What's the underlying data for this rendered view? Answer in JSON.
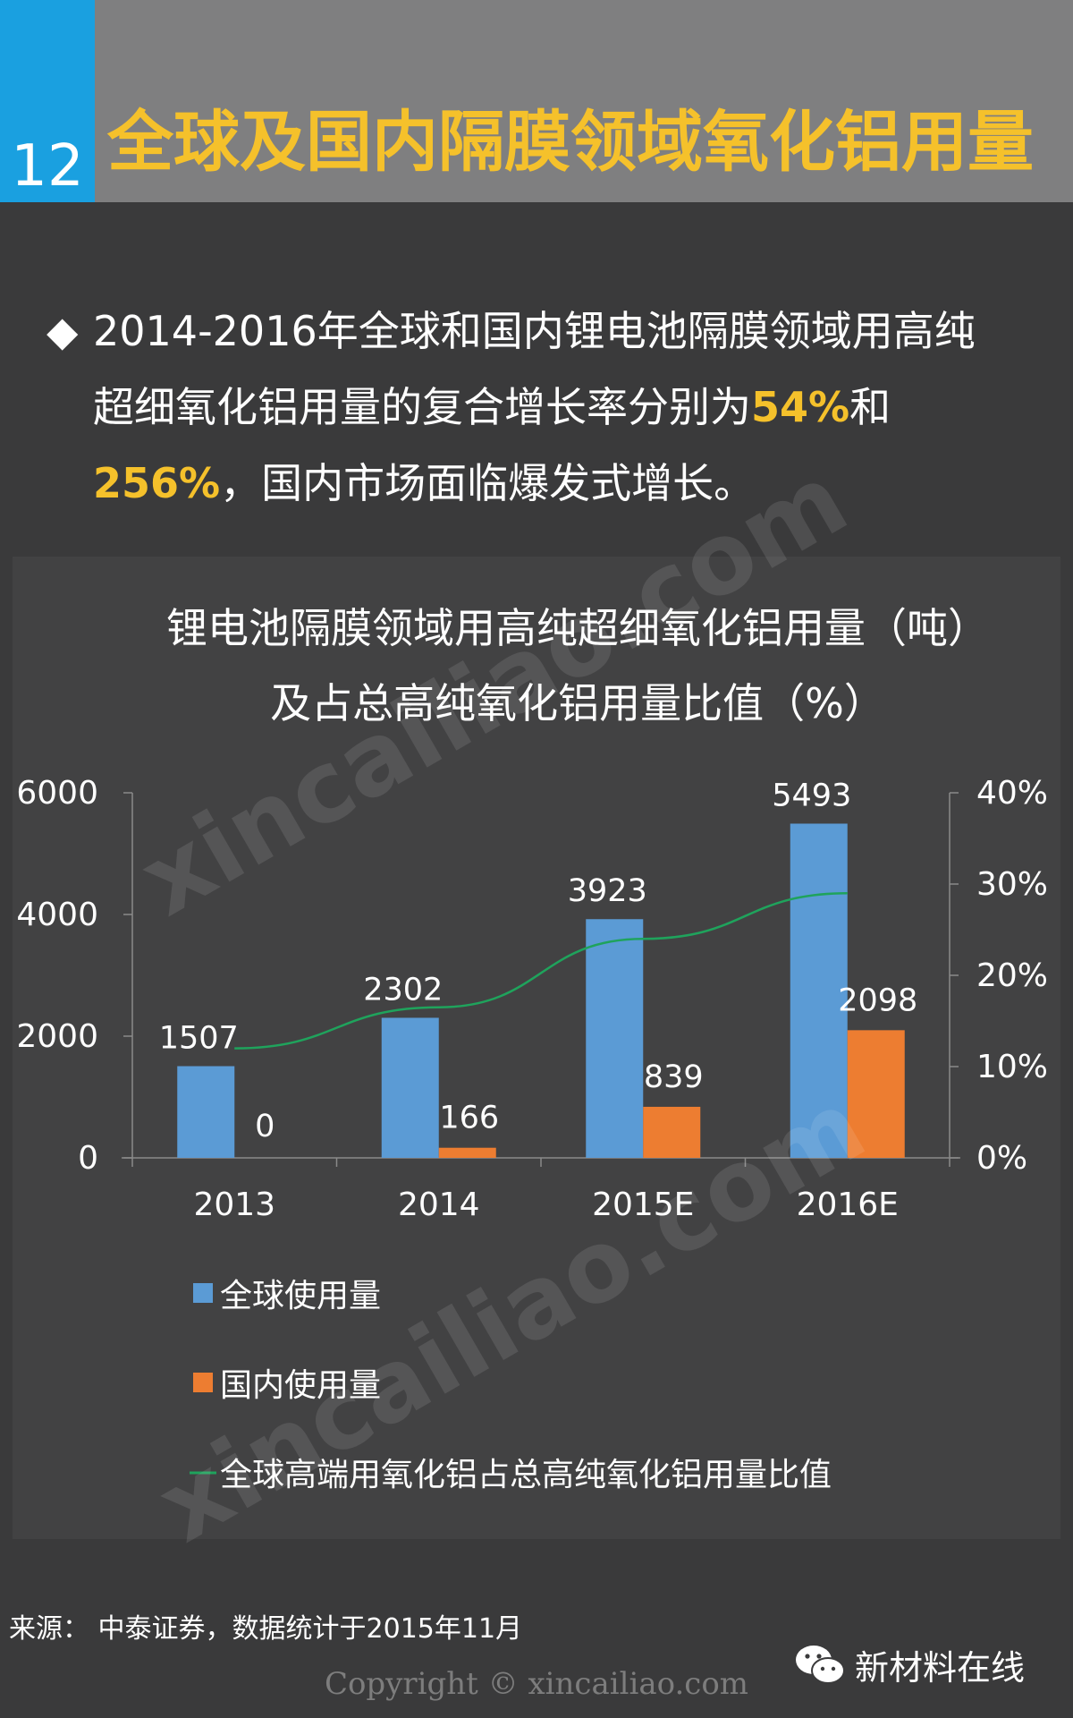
{
  "header": {
    "number": "12",
    "title": "全球及国内隔膜领域氧化铝用量"
  },
  "bullet": {
    "marker": "◆",
    "line1": "2014-2016年全球和国内锂电池隔膜领域用高纯",
    "line2_prefix": "超细氧化铝用量的复合增长率分别为",
    "highlight1": "54%",
    "line2_suffix": "和",
    "highlight2": "256%",
    "line3_suffix": "，国内市场面临爆发式增长。"
  },
  "chart_data": {
    "type": "bar",
    "title_line1": "锂电池隔膜领域用高纯超细氧化铝用量（吨）",
    "title_line2": "及占总高纯氧化铝用量比值（%）",
    "categories": [
      "2013",
      "2014",
      "2015E",
      "2016E"
    ],
    "series": [
      {
        "name": "全球使用量",
        "type": "bar",
        "axis": "left",
        "color": "#5b9bd5",
        "values": [
          1507,
          2302,
          3923,
          5493
        ]
      },
      {
        "name": "国内使用量",
        "type": "bar",
        "axis": "left",
        "color": "#ed7d31",
        "values": [
          0,
          166,
          839,
          2098
        ]
      },
      {
        "name": "全球高端用氧化铝占总高纯氧化铝用量比值",
        "type": "line",
        "axis": "right",
        "color": "#1fa35c",
        "values": [
          12,
          16.5,
          24,
          29
        ]
      }
    ],
    "y_left": {
      "ylim": [
        0,
        6000
      ],
      "ticks": [
        "0",
        "2000",
        "4000",
        "6000"
      ]
    },
    "y_right": {
      "ylim": [
        0,
        40
      ],
      "ticks": [
        "0%",
        "10%",
        "20%",
        "30%",
        "40%"
      ]
    },
    "legend_position": "bottom-left"
  },
  "source": "来源： 中泰证券，数据统计于2015年11月",
  "wechat_name": "新材料在线",
  "copyright": "Copyright © xincailiao.com",
  "watermark": "xincailiao.com"
}
